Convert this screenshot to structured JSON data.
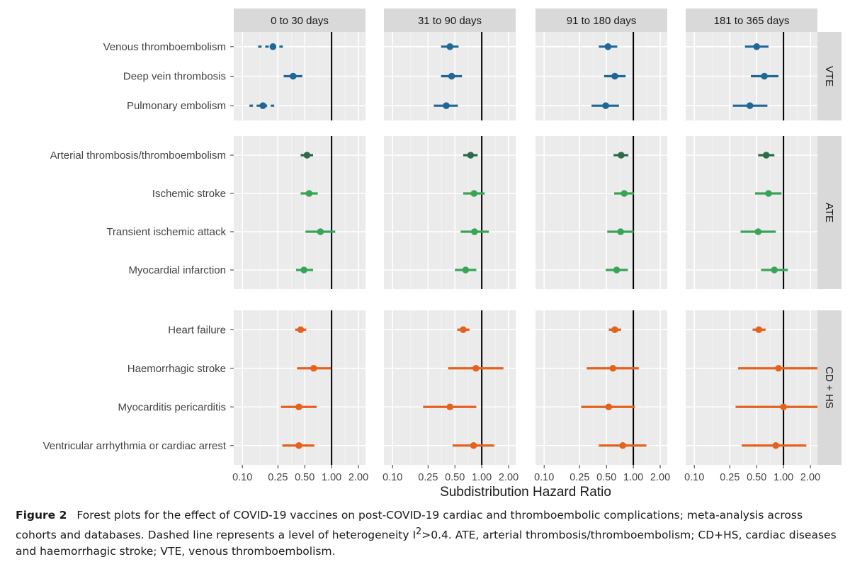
{
  "chart_data": {
    "type": "forest",
    "xlabel": "Subdistribution Hazard Ratio",
    "x_scale": "log",
    "xlim": [
      0.08,
      2.4
    ],
    "x_ticks": [
      0.1,
      0.25,
      0.5,
      1.0,
      2.0
    ],
    "x_tick_labels": [
      "0.10",
      "0.25",
      "0.50",
      "1.00",
      "2.00"
    ],
    "reference_line": 1.0,
    "grid": true,
    "column_facets": [
      "0 to 30 days",
      "31 to 90 days",
      "91 to 180 days",
      "181 to 365 days"
    ],
    "row_facets": [
      {
        "label": "VTE",
        "color": "#1f6796",
        "outcomes": [
          {
            "name": "Venous thromboembolism",
            "estimates": [
              {
                "hr": 0.22,
                "lo": 0.15,
                "hi": 0.3,
                "dashed": true
              },
              {
                "hr": 0.44,
                "lo": 0.35,
                "hi": 0.55,
                "dashed": false
              },
              {
                "hr": 0.52,
                "lo": 0.41,
                "hi": 0.66,
                "dashed": false
              },
              {
                "hr": 0.5,
                "lo": 0.37,
                "hi": 0.68,
                "dashed": false
              }
            ]
          },
          {
            "name": "Deep vein thrombosis",
            "estimates": [
              {
                "hr": 0.37,
                "lo": 0.29,
                "hi": 0.47,
                "dashed": false
              },
              {
                "hr": 0.46,
                "lo": 0.35,
                "hi": 0.6,
                "dashed": false
              },
              {
                "hr": 0.62,
                "lo": 0.47,
                "hi": 0.82,
                "dashed": false
              },
              {
                "hr": 0.61,
                "lo": 0.43,
                "hi": 0.88,
                "dashed": false
              }
            ]
          },
          {
            "name": "Pulmonary embolism",
            "estimates": [
              {
                "hr": 0.17,
                "lo": 0.12,
                "hi": 0.25,
                "dashed": true
              },
              {
                "hr": 0.4,
                "lo": 0.29,
                "hi": 0.54,
                "dashed": false
              },
              {
                "hr": 0.49,
                "lo": 0.34,
                "hi": 0.69,
                "dashed": false
              },
              {
                "hr": 0.42,
                "lo": 0.27,
                "hi": 0.66,
                "dashed": false
              }
            ]
          }
        ]
      },
      {
        "label": "ATE",
        "color": "#38a556",
        "outcomes": [
          {
            "name": "Arterial thrombosis/thromboembolism",
            "color": "#2c6b47",
            "estimates": [
              {
                "hr": 0.53,
                "lo": 0.45,
                "hi": 0.62,
                "dashed": false
              },
              {
                "hr": 0.75,
                "lo": 0.62,
                "hi": 0.9,
                "dashed": false
              },
              {
                "hr": 0.73,
                "lo": 0.6,
                "hi": 0.88,
                "dashed": false
              },
              {
                "hr": 0.64,
                "lo": 0.52,
                "hi": 0.79,
                "dashed": false
              }
            ]
          },
          {
            "name": "Ischemic stroke",
            "estimates": [
              {
                "hr": 0.56,
                "lo": 0.45,
                "hi": 0.7,
                "dashed": false
              },
              {
                "hr": 0.82,
                "lo": 0.62,
                "hi": 1.08,
                "dashed": false
              },
              {
                "hr": 0.79,
                "lo": 0.61,
                "hi": 1.02,
                "dashed": false
              },
              {
                "hr": 0.68,
                "lo": 0.48,
                "hi": 0.95,
                "dashed": false
              }
            ]
          },
          {
            "name": "Transient ischemic attack",
            "estimates": [
              {
                "hr": 0.75,
                "lo": 0.51,
                "hi": 1.1,
                "dashed": false
              },
              {
                "hr": 0.83,
                "lo": 0.58,
                "hi": 1.2,
                "dashed": false
              },
              {
                "hr": 0.72,
                "lo": 0.51,
                "hi": 1.01,
                "dashed": false
              },
              {
                "hr": 0.52,
                "lo": 0.33,
                "hi": 0.82,
                "dashed": false
              }
            ]
          },
          {
            "name": "Myocardial infarction",
            "estimates": [
              {
                "hr": 0.49,
                "lo": 0.4,
                "hi": 0.62,
                "dashed": false
              },
              {
                "hr": 0.66,
                "lo": 0.5,
                "hi": 0.87,
                "dashed": false
              },
              {
                "hr": 0.65,
                "lo": 0.49,
                "hi": 0.87,
                "dashed": false
              },
              {
                "hr": 0.79,
                "lo": 0.56,
                "hi": 1.12,
                "dashed": false
              }
            ]
          }
        ]
      },
      {
        "label": "CD + HS",
        "color": "#e4621e",
        "outcomes": [
          {
            "name": "Heart failure",
            "estimates": [
              {
                "hr": 0.45,
                "lo": 0.39,
                "hi": 0.52,
                "dashed": false
              },
              {
                "hr": 0.62,
                "lo": 0.53,
                "hi": 0.73,
                "dashed": false
              },
              {
                "hr": 0.62,
                "lo": 0.53,
                "hi": 0.73,
                "dashed": false
              },
              {
                "hr": 0.53,
                "lo": 0.45,
                "hi": 0.63,
                "dashed": false
              }
            ]
          },
          {
            "name": "Haemorrhagic stroke",
            "estimates": [
              {
                "hr": 0.63,
                "lo": 0.41,
                "hi": 0.98,
                "dashed": false
              },
              {
                "hr": 0.86,
                "lo": 0.42,
                "hi": 1.75,
                "dashed": false
              },
              {
                "hr": 0.59,
                "lo": 0.3,
                "hi": 1.15,
                "dashed": false
              },
              {
                "hr": 0.88,
                "lo": 0.31,
                "hi": 2.4,
                "dashed": false
              }
            ]
          },
          {
            "name": "Myocarditis pericarditis",
            "estimates": [
              {
                "hr": 0.43,
                "lo": 0.27,
                "hi": 0.68,
                "dashed": false
              },
              {
                "hr": 0.44,
                "lo": 0.22,
                "hi": 0.87,
                "dashed": false
              },
              {
                "hr": 0.53,
                "lo": 0.26,
                "hi": 1.04,
                "dashed": false
              },
              {
                "hr": 1.0,
                "lo": 0.29,
                "hi": 2.4,
                "dashed": false
              }
            ]
          },
          {
            "name": "Ventricular arrhythmia or cardiac arrest",
            "estimates": [
              {
                "hr": 0.43,
                "lo": 0.28,
                "hi": 0.64,
                "dashed": false
              },
              {
                "hr": 0.81,
                "lo": 0.47,
                "hi": 1.38,
                "dashed": false
              },
              {
                "hr": 0.76,
                "lo": 0.41,
                "hi": 1.4,
                "dashed": false
              },
              {
                "hr": 0.82,
                "lo": 0.34,
                "hi": 1.8,
                "dashed": false
              }
            ]
          }
        ]
      }
    ]
  },
  "caption": {
    "label": "Figure 2",
    "text_before_sup": "Forest plots for the effect of COVID-19 vaccines on post-COVID-19 cardiac and thromboembolic complications; meta-analysis across cohorts and databases. Dashed line represents a level of heterogeneity I",
    "sup": "2",
    "text_after_sup": ">0.4. ATE, arterial thrombosis/thromboembolism; CD+HS, cardiac diseases and haemorrhagic stroke; VTE, venous thromboembolism."
  }
}
